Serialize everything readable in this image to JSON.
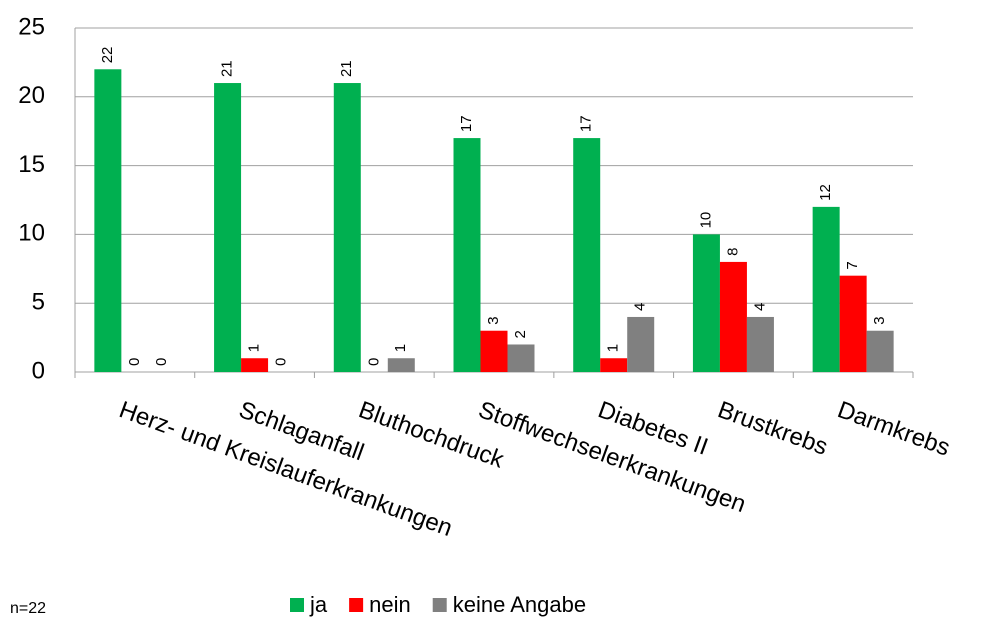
{
  "chart_data": {
    "type": "bar",
    "categories": [
      "Herz- und Kreislauferkrankungen",
      "Schlaganfall",
      "Bluthochdruck",
      "Stoffwechselerkrankungen",
      "Diabetes II",
      "Brustkrebs",
      "Darmkrebs"
    ],
    "series": [
      {
        "name": "ja",
        "color": "#00b050",
        "values": [
          22,
          21,
          21,
          17,
          17,
          10,
          12
        ]
      },
      {
        "name": "nein",
        "color": "#ff0000",
        "values": [
          0,
          1,
          0,
          3,
          1,
          8,
          7
        ]
      },
      {
        "name": "keine Angabe",
        "color": "#808080",
        "values": [
          0,
          0,
          1,
          2,
          4,
          4,
          3
        ]
      }
    ],
    "ylim": [
      0,
      25
    ],
    "yticks": [
      0,
      5,
      10,
      15,
      20,
      25
    ],
    "grid": true,
    "legend": "bottom",
    "annotation": "n=22"
  }
}
